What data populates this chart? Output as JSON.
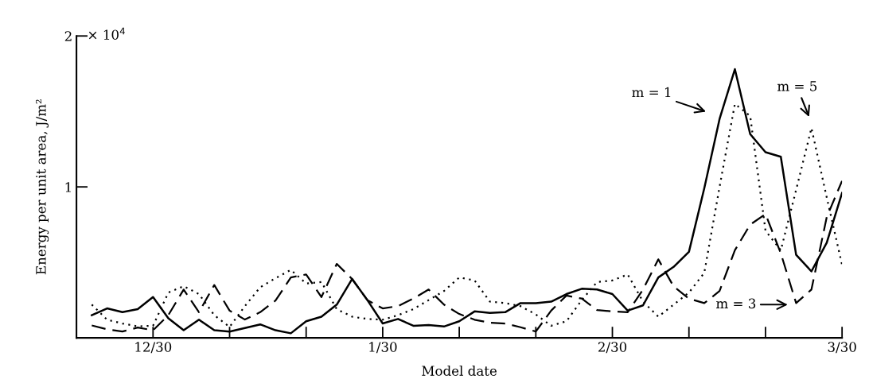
{
  "chart_data": {
    "type": "line",
    "xlabel": "Model date",
    "ylabel": "Energy per unit area, J/m²",
    "categories": [
      null,
      null,
      null,
      null,
      null,
      "12/30",
      null,
      null,
      null,
      null,
      null,
      null,
      null,
      null,
      null,
      null,
      null,
      null,
      null,
      null,
      "1/30",
      null,
      null,
      null,
      null,
      null,
      null,
      null,
      null,
      null,
      null,
      null,
      null,
      null,
      null,
      "2/30",
      null,
      null,
      null,
      null,
      null,
      null,
      null,
      null,
      null,
      null,
      null,
      null,
      null,
      null,
      "3/30"
    ],
    "ylim": [
      0,
      2
    ],
    "yticks": [
      1,
      2
    ],
    "grid": false,
    "marker": "none",
    "series": [
      {
        "color": "#000000",
        "line_style": "solid",
        "values": [
          null,
          0.15,
          0.195,
          0.17,
          0.19,
          0.27,
          0.13,
          0.05,
          0.12,
          0.05,
          0.041,
          0.065,
          0.089,
          0.05,
          0.03,
          0.11,
          0.14,
          0.22,
          0.39,
          0.25,
          0.095,
          0.125,
          0.08,
          0.085,
          0.075,
          0.11,
          0.175,
          0.165,
          0.17,
          0.23,
          0.23,
          0.24,
          0.29,
          0.325,
          0.32,
          0.29,
          0.18,
          0.215,
          0.4,
          0.47,
          0.57,
          0.99,
          1.45,
          1.78,
          1.35,
          1.23,
          1.2,
          0.55,
          0.44,
          0.63,
          0.96
        ]
      },
      {
        "color": "#000000",
        "line_style": "dashed",
        "values": [
          null,
          0.082,
          0.056,
          0.042,
          0.068,
          0.05,
          0.15,
          0.32,
          0.17,
          0.35,
          0.18,
          0.121,
          0.17,
          0.247,
          0.4,
          0.42,
          0.27,
          0.49,
          0.39,
          0.25,
          0.195,
          0.21,
          0.26,
          0.32,
          0.22,
          0.158,
          0.12,
          0.1,
          0.095,
          0.07,
          0.042,
          0.18,
          0.28,
          0.26,
          0.184,
          0.175,
          0.17,
          0.32,
          0.52,
          0.34,
          0.26,
          0.23,
          0.31,
          0.58,
          0.75,
          0.82,
          0.56,
          0.23,
          0.32,
          0.8,
          1.04
        ]
      },
      {
        "color": "#000000",
        "line_style": "dotted",
        "values": [
          null,
          0.22,
          0.12,
          0.095,
          0.076,
          0.08,
          0.3,
          0.342,
          0.29,
          0.15,
          0.072,
          0.21,
          0.335,
          0.395,
          0.45,
          0.36,
          0.37,
          0.19,
          0.14,
          0.125,
          0.12,
          0.15,
          0.19,
          0.25,
          0.31,
          0.4,
          0.38,
          0.24,
          0.23,
          0.21,
          0.155,
          0.08,
          0.11,
          0.25,
          0.37,
          0.38,
          0.42,
          0.24,
          0.14,
          0.22,
          0.3,
          0.43,
          1.0,
          1.55,
          1.47,
          0.71,
          0.58,
          0.98,
          1.39,
          0.93,
          0.484
        ]
      }
    ],
    "annotations": [
      "× 10$^{4}$",
      "m = 1",
      "m = 5",
      "m = 3"
    ]
  }
}
